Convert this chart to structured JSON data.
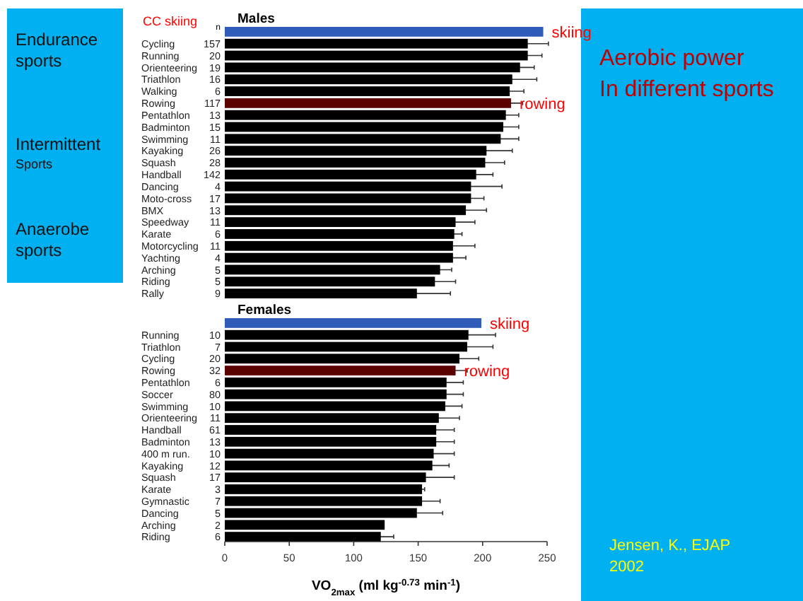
{
  "chart_data": [
    {
      "type": "other",
      "annotations": [
        "Endurance\nsports",
        "Intermittent\nSports",
        "Anaerobe\nsports"
      ]
    },
    {
      "type": "bar",
      "orientation": "horizontal",
      "title": "Males",
      "xlim": [
        0,
        250
      ],
      "tick_labels": "y",
      "categories": [
        null,
        "Cycling 157",
        "Running 20",
        "Orienteering 19",
        "Triathlon 16",
        "Walking 6",
        "Rowing 117",
        "Pentathlon 13",
        "Badminton 15",
        "Swimming 11",
        "Kayaking 26",
        "Squash 28",
        "Handball 142",
        "Dancing 4",
        "Moto-cross 17",
        "BMX 13",
        "Speedway 11",
        "Karate 6",
        "Motorcycling 11",
        "Yachting 4",
        "Arching 5",
        "Riding 5",
        "Rally 9"
      ],
      "values": [
        247,
        235,
        235,
        229,
        223,
        221,
        222,
        218,
        216,
        214,
        203,
        202,
        195,
        191,
        191,
        187,
        179,
        178,
        177,
        177,
        167,
        163,
        149
      ],
      "errors": [
        null,
        16,
        11,
        11,
        19,
        11,
        9,
        10,
        12,
        14,
        20,
        15,
        13,
        24,
        10,
        16,
        15,
        6,
        17,
        10,
        9,
        16,
        26
      ],
      "colors": [
        "#2e5cb8",
        "#000000",
        "#000000",
        "#000000",
        "#000000",
        "#000000",
        "#5c0000",
        "#000000",
        "#000000",
        "#000000",
        "#000000",
        "#000000",
        "#000000",
        "#000000",
        "#000000",
        "#000000",
        "#000000",
        "#000000",
        "#000000",
        "#000000",
        "#000000",
        "#000000",
        "#000000"
      ],
      "annotations": [
        "CC skiing",
        "n",
        {
          "text": "skiing",
          "x": 247
        },
        {
          "text": "rowing",
          "x": 222,
          "y": "Rowing 117"
        }
      ]
    },
    {
      "type": "bar",
      "orientation": "horizontal",
      "title": "Females",
      "xlabel": "VO$_{2max}$ (ml kg$^{-0.73}$ min$^{-1}$)",
      "xlim": [
        0,
        250
      ],
      "xticks": [
        0,
        50,
        100,
        150,
        200,
        250
      ],
      "categories": [
        null,
        "Running 10",
        "Triathlon 7",
        "Cycling 20",
        "Rowing 32",
        "Pentathlon 6",
        "Soccer 80",
        "Swimming 10",
        "Orienteering 11",
        "Handball 61",
        "Badminton 13",
        "400 m run. 10",
        "Kayaking 12",
        "Squash 17",
        "Karate 3",
        "Gymnastic 7",
        "Dancing 5",
        "Arching 2",
        "Riding 6"
      ],
      "values": [
        199,
        189,
        188,
        182,
        179,
        172,
        172,
        171,
        166,
        164,
        164,
        162,
        161,
        156,
        153,
        153,
        149,
        124,
        121
      ],
      "errors": [
        null,
        21,
        20,
        15,
        9,
        13,
        13,
        13,
        16,
        14,
        14,
        16,
        13,
        22,
        2,
        14,
        20,
        null,
        10
      ],
      "colors": [
        "#2e5cb8",
        "#000000",
        "#000000",
        "#000000",
        "#5c0000",
        "#000000",
        "#000000",
        "#000000",
        "#000000",
        "#000000",
        "#000000",
        "#000000",
        "#000000",
        "#000000",
        "#000000",
        "#000000",
        "#000000",
        "#000000",
        "#000000"
      ],
      "annotations": [
        {
          "text": "skiing",
          "x": 199
        },
        {
          "text": "rowing",
          "x": 179,
          "y": "Rowing 32"
        }
      ]
    },
    {
      "type": "other",
      "title": "Aerobic power\nIn different sports",
      "annotations": [
        "Jensen, K., EJAP\n2002"
      ]
    }
  ]
}
